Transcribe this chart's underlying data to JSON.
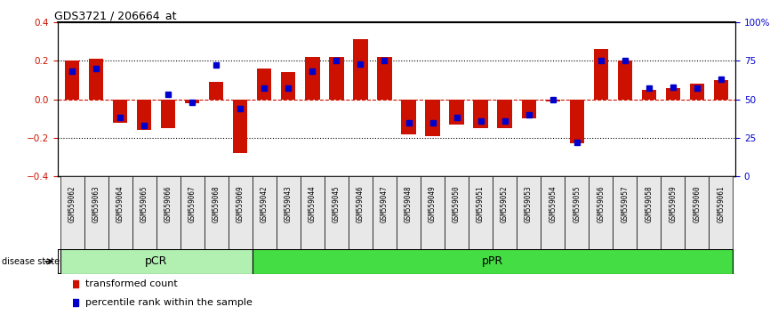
{
  "title": "GDS3721 / 206664_at",
  "samples": [
    "GSM559062",
    "GSM559063",
    "GSM559064",
    "GSM559065",
    "GSM559066",
    "GSM559067",
    "GSM559068",
    "GSM559069",
    "GSM559042",
    "GSM559043",
    "GSM559044",
    "GSM559045",
    "GSM559046",
    "GSM559047",
    "GSM559048",
    "GSM559049",
    "GSM559050",
    "GSM559051",
    "GSM559052",
    "GSM559053",
    "GSM559054",
    "GSM559055",
    "GSM559056",
    "GSM559057",
    "GSM559058",
    "GSM559059",
    "GSM559060",
    "GSM559061"
  ],
  "transformed_count": [
    0.2,
    0.21,
    -0.12,
    -0.16,
    -0.15,
    -0.02,
    0.09,
    -0.28,
    0.16,
    0.14,
    0.22,
    0.22,
    0.31,
    0.22,
    -0.18,
    -0.19,
    -0.13,
    -0.15,
    -0.15,
    -0.1,
    -0.01,
    -0.23,
    0.26,
    0.2,
    0.05,
    0.06,
    0.08,
    0.1
  ],
  "percentile_rank": [
    68,
    70,
    38,
    33,
    53,
    48,
    72,
    44,
    57,
    57,
    68,
    75,
    73,
    75,
    35,
    35,
    38,
    36,
    36,
    40,
    50,
    22,
    75,
    75,
    57,
    58,
    57,
    63
  ],
  "groups": [
    {
      "label": "pCR",
      "start": 0,
      "end": 8,
      "color": "#b2f0b2"
    },
    {
      "label": "pPR",
      "start": 8,
      "end": 28,
      "color": "#44dd44"
    }
  ],
  "bar_color": "#cc1100",
  "percentile_color": "#0000cc",
  "ylim": [
    -0.4,
    0.4
  ],
  "yticks_left": [
    -0.4,
    -0.2,
    0.0,
    0.2,
    0.4
  ],
  "yticks_right": [
    0,
    25,
    50,
    75,
    100
  ],
  "disease_state_label": "disease state",
  "legend_items": [
    "transformed count",
    "percentile rank within the sample"
  ]
}
